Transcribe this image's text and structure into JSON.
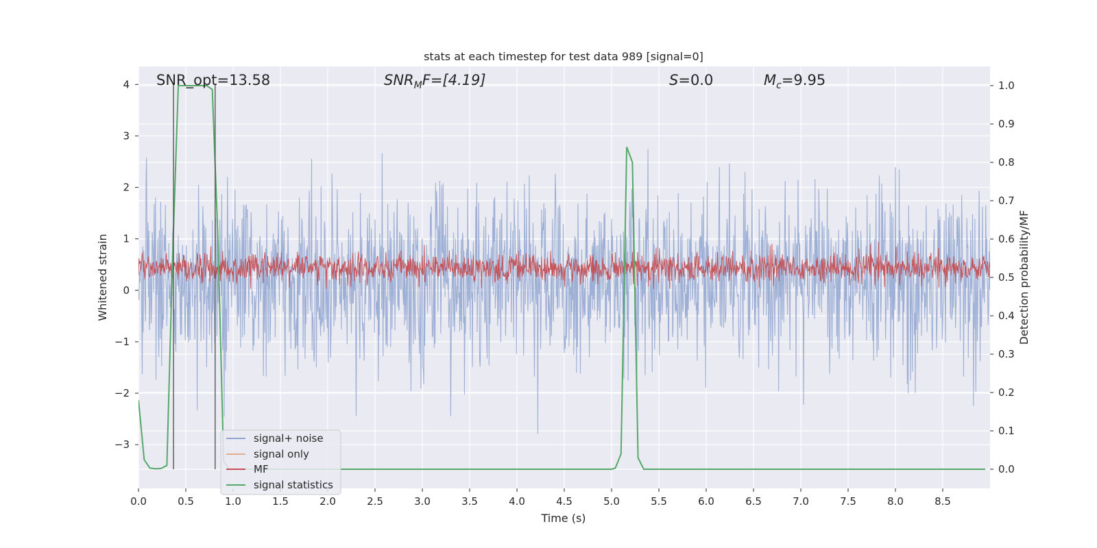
{
  "chart_data": {
    "type": "line",
    "title": "stats at each timestep for test data 989 [signal=0]",
    "xlabel": "Time (s)",
    "ylabel_left": "Whitened strain",
    "ylabel_right": "Detection probability/MF",
    "xlim": [
      0,
      9.0
    ],
    "ylim_left": [
      -3.85,
      4.35
    ],
    "ylim_right": [
      -0.05,
      1.05
    ],
    "grid": true,
    "x_ticks": [
      0.0,
      0.5,
      1.0,
      1.5,
      2.0,
      2.5,
      3.0,
      3.5,
      4.0,
      4.5,
      5.0,
      5.5,
      6.0,
      6.5,
      7.0,
      7.5,
      8.0,
      8.5
    ],
    "x_tick_labels": [
      "0.0",
      "0.5",
      "1.0",
      "1.5",
      "2.0",
      "2.5",
      "3.0",
      "3.5",
      "4.0",
      "4.5",
      "5.0",
      "5.5",
      "6.0",
      "6.5",
      "7.0",
      "7.5",
      "8.0",
      "8.5"
    ],
    "y_left_ticks": [
      -3,
      -2,
      -1,
      0,
      1,
      2,
      3,
      4
    ],
    "y_left_tick_labels": [
      "−3",
      "−2",
      "−1",
      "0",
      "1",
      "2",
      "3",
      "4"
    ],
    "y_right_ticks": [
      0.0,
      0.1,
      0.2,
      0.3,
      0.4,
      0.5,
      0.6,
      0.7,
      0.8,
      0.9,
      1.0
    ],
    "y_right_tick_labels": [
      "0.0",
      "0.1",
      "0.2",
      "0.3",
      "0.4",
      "0.5",
      "0.6",
      "0.7",
      "0.8",
      "0.9",
      "1.0"
    ],
    "annotations": {
      "snr_opt": "SNR_opt=13.58",
      "snr_mf_base": "SNR",
      "snr_mf_sub": "M",
      "snr_mf_rest": "F=[4.19]",
      "s_label": "S",
      "s_value": "=0.0",
      "mc_base": "M",
      "mc_sub": "c",
      "mc_value": "=9.95"
    },
    "vertical_markers": [
      0.37,
      0.81
    ],
    "legend": {
      "location": "lower-left",
      "entries": [
        "signal+ noise",
        "signal only",
        "MF",
        "signal statistics"
      ]
    },
    "series": [
      {
        "name": "signal+ noise",
        "axis": "left",
        "color": "#8fa5cf",
        "kind": "noise",
        "sample_rate_hz": 200,
        "typical_low": -1.3,
        "typical_high": 1.75,
        "max_value": 4.0,
        "min_value": -3.5
      },
      {
        "name": "signal only",
        "axis": "left",
        "color": "#dd8452",
        "kind": "flat",
        "value": 0.0
      },
      {
        "name": "MF",
        "axis": "right",
        "color": "#c44e52",
        "kind": "noise",
        "sample_rate_hz": 200,
        "typical_low": 0.49,
        "typical_high": 0.56,
        "max_value": 0.6,
        "min_value": 0.47
      },
      {
        "name": "signal statistics",
        "axis": "right",
        "color": "#55a868",
        "kind": "line",
        "x": [
          0.0,
          0.06,
          0.12,
          0.18,
          0.24,
          0.3,
          0.36,
          0.42,
          0.48,
          0.54,
          0.6,
          0.66,
          0.72,
          0.78,
          0.84,
          0.9,
          0.96,
          1.02,
          1.08,
          1.14,
          1.2,
          1.5,
          2.0,
          2.5,
          3.0,
          3.5,
          4.0,
          4.5,
          5.0,
          5.04,
          5.1,
          5.16,
          5.22,
          5.28,
          5.34,
          5.4,
          5.46,
          5.52,
          5.6,
          6.0,
          6.5,
          7.0,
          7.5,
          8.0,
          8.5,
          8.95
        ],
        "y": [
          0.18,
          0.025,
          0.003,
          0.001,
          0.002,
          0.01,
          0.55,
          1.0,
          1.0,
          1.0,
          1.0,
          1.0,
          1.0,
          0.99,
          0.6,
          0.02,
          0.0,
          0.0,
          0.0,
          0.0,
          0.0,
          0.0,
          0.0,
          0.0,
          0.0,
          0.0,
          0.0,
          0.0,
          0.0,
          0.003,
          0.04,
          0.84,
          0.8,
          0.03,
          0.0,
          0.0,
          0.0,
          0.0,
          0.0,
          0.0,
          0.0,
          0.0,
          0.0,
          0.0,
          0.0,
          0.0
        ]
      }
    ]
  }
}
